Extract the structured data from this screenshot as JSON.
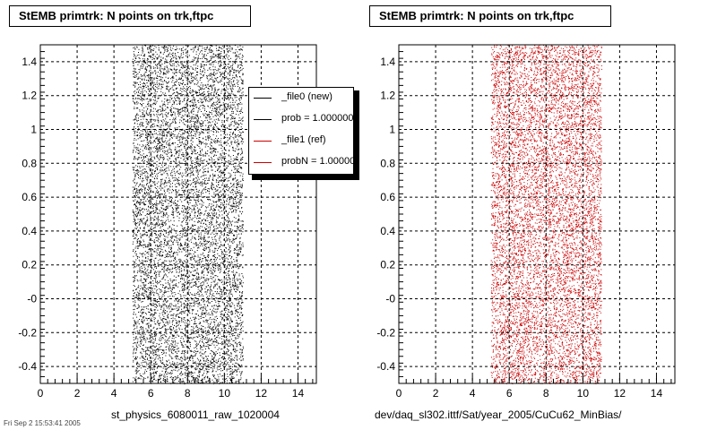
{
  "panels": [
    {
      "title": "StEMB primtrk: N points on trk,ftpc",
      "footer": "st_physics_6080011_raw_1020004",
      "legend": [
        {
          "label": "_file0 (new)",
          "color": "#000000"
        },
        {
          "label": "prob = 1.000000",
          "color": "#000000"
        },
        {
          "label": "_file1 (ref)",
          "color": "#cc0000"
        },
        {
          "label": "probN = 1.000000",
          "color": "#cc0000"
        }
      ]
    },
    {
      "title": "StEMB primtrk: N points on trk,ftpc",
      "footer": "dev/daq_sl302.ittf/Sat/year_2005/CuCu62_MinBias/"
    }
  ],
  "stamp": "Fri Sep  2 15:53:41 2005",
  "chart_data": [
    {
      "type": "scatter",
      "title": "StEMB primtrk: N points on trk,ftpc",
      "xlabel": "st_physics_6080011_raw_1020004",
      "ylabel": "",
      "xlim": [
        0,
        15
      ],
      "ylim": [
        -0.5,
        1.5
      ],
      "x_ticks": [
        "0",
        "2",
        "4",
        "6",
        "8",
        "10",
        "12",
        "14"
      ],
      "y_ticks": [
        "-0.4",
        "-0.2",
        "-0",
        "0.2",
        "0.4",
        "0.6",
        "0.8",
        "1",
        "1.2",
        "1.4"
      ],
      "grid": true,
      "legend_position": "top-right",
      "series": [
        {
          "name": "_file0 (new)",
          "color": "#000000",
          "x_range": [
            5,
            11
          ],
          "y_range": [
            -0.5,
            1.5
          ]
        }
      ]
    },
    {
      "type": "scatter",
      "title": "StEMB primtrk: N points on trk,ftpc",
      "xlabel": "dev/daq_sl302.ittf/Sat/year_2005/CuCu62_MinBias/",
      "ylabel": "",
      "xlim": [
        0,
        15
      ],
      "ylim": [
        -0.5,
        1.5
      ],
      "x_ticks": [
        "0",
        "2",
        "4",
        "6",
        "8",
        "10",
        "12",
        "14"
      ],
      "y_ticks": [
        "-0.4",
        "-0.2",
        "-0",
        "0.2",
        "0.4",
        "0.6",
        "0.8",
        "1",
        "1.2",
        "1.4"
      ],
      "grid": true,
      "series": [
        {
          "name": "_file1 (ref)",
          "color": "#cc0000",
          "x_range": [
            5,
            11
          ],
          "y_range": [
            -0.5,
            1.5
          ]
        }
      ]
    }
  ]
}
